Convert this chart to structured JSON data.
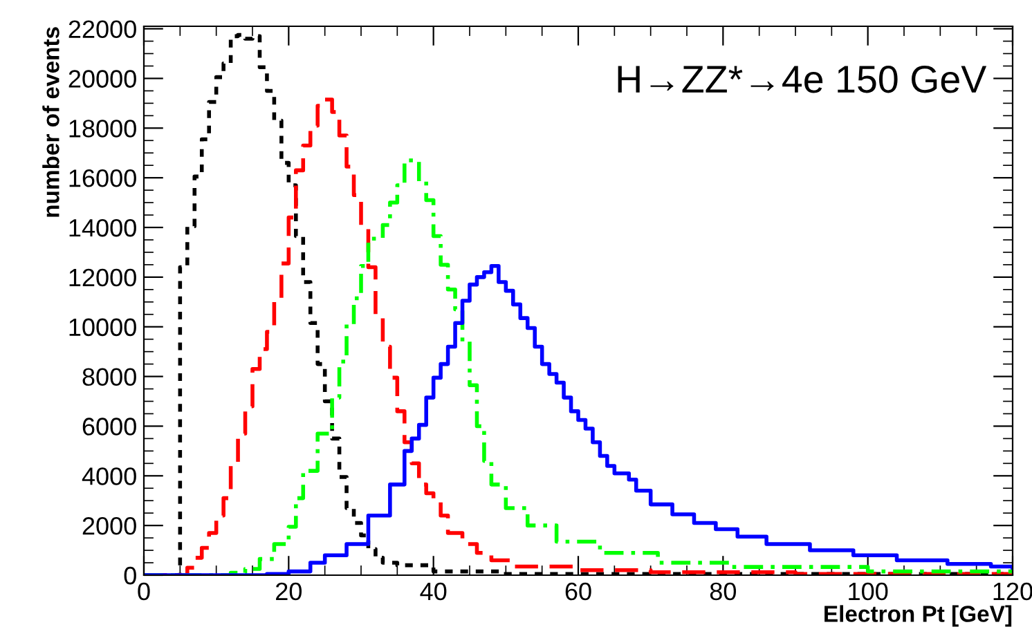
{
  "chart_data": {
    "type": "step",
    "xlabel": "Electron Pt [GeV]",
    "ylabel": "number of events",
    "annotations": [
      "H→ZZ*→4e 150 GeV"
    ],
    "xlim": [
      0,
      120
    ],
    "xticks": [
      0,
      20,
      40,
      60,
      80,
      100,
      120
    ],
    "ylim": [
      0,
      22100
    ],
    "yticks": [
      0,
      2000,
      4000,
      6000,
      8000,
      10000,
      12000,
      14000,
      16000,
      18000,
      20000,
      22000
    ],
    "grid": false,
    "legend": false,
    "series": [
      {
        "color": "#000000",
        "line_style": "dotted",
        "x": [
          0,
          5,
          6,
          7,
          8,
          9,
          10,
          11,
          12,
          13,
          14,
          15,
          16,
          17,
          18,
          19,
          20,
          21,
          22,
          23,
          24,
          25,
          26,
          27,
          28,
          29,
          30,
          31,
          32,
          33,
          35,
          40,
          50,
          120
        ],
        "values": [
          0,
          12400,
          14050,
          16050,
          17550,
          19050,
          20050,
          20600,
          21700,
          21750,
          21600,
          21700,
          20450,
          19500,
          18300,
          16600,
          15700,
          13650,
          11800,
          10150,
          8500,
          7000,
          5500,
          3950,
          2700,
          2100,
          1600,
          1050,
          700,
          500,
          400,
          150,
          50,
          0
        ]
      },
      {
        "color": "#ff0000",
        "line_style": "dashed",
        "x": [
          0,
          6,
          7,
          8,
          9,
          10,
          11,
          12,
          13,
          14,
          15,
          16,
          17,
          18,
          19,
          20,
          21,
          22,
          23,
          24,
          25,
          26,
          27,
          28,
          29,
          30,
          31,
          32,
          33,
          34,
          35,
          36,
          37,
          38,
          39,
          40,
          41,
          42,
          44,
          46,
          48,
          51,
          60,
          70,
          90,
          120
        ],
        "values": [
          0,
          300,
          700,
          1100,
          1700,
          2400,
          3100,
          4500,
          5700,
          6800,
          8300,
          9100,
          9800,
          11000,
          12550,
          14400,
          16300,
          17300,
          18100,
          18900,
          19150,
          18650,
          17700,
          16450,
          15300,
          14050,
          12400,
          10500,
          9200,
          7950,
          6600,
          5350,
          4500,
          3650,
          3300,
          3000,
          2400,
          1700,
          1250,
          900,
          600,
          350,
          200,
          120,
          50,
          20
        ]
      },
      {
        "color": "#00ff00",
        "line_style": "dashdot",
        "x": [
          0,
          12,
          14,
          16,
          18,
          20,
          21,
          22,
          24,
          26,
          27,
          28,
          29,
          30,
          31,
          33,
          34,
          35,
          36,
          38,
          39,
          40,
          41,
          42,
          43,
          44,
          45,
          46,
          47,
          48,
          50,
          53,
          57,
          63,
          71,
          81,
          100,
          120
        ],
        "values": [
          0,
          100,
          250,
          650,
          1250,
          1950,
          3100,
          4200,
          5700,
          7150,
          8600,
          10100,
          11150,
          12450,
          13550,
          14100,
          15000,
          15700,
          16700,
          15850,
          15100,
          13650,
          12500,
          11500,
          10700,
          9400,
          7650,
          6000,
          4600,
          3650,
          2700,
          2000,
          1350,
          900,
          500,
          330,
          150,
          100
        ]
      },
      {
        "color": "#0000ff",
        "line_style": "solid",
        "x": [
          0,
          17,
          20,
          23,
          25,
          28,
          31,
          34,
          36,
          37,
          38,
          39,
          40,
          41,
          42,
          43,
          44,
          45,
          46,
          47,
          48,
          49,
          50,
          51,
          52,
          53,
          54,
          55,
          56,
          57,
          58,
          59,
          60,
          61,
          62,
          63,
          64,
          65,
          67,
          68,
          70,
          73,
          76,
          79,
          82,
          86,
          92,
          98,
          104,
          111,
          117,
          120
        ],
        "values": [
          0,
          50,
          150,
          500,
          800,
          1250,
          2400,
          3650,
          5000,
          5500,
          6050,
          7150,
          7950,
          8500,
          9200,
          10150,
          11050,
          11700,
          12000,
          12200,
          12450,
          11800,
          11450,
          10900,
          10350,
          9950,
          9200,
          8500,
          8100,
          7750,
          7150,
          6600,
          6250,
          5900,
          5350,
          4800,
          4400,
          4100,
          3850,
          3400,
          2850,
          2450,
          2100,
          1850,
          1550,
          1250,
          1000,
          800,
          600,
          450,
          350,
          300
        ]
      }
    ]
  }
}
